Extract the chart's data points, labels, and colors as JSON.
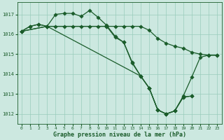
{
  "bg_color": "#cce8e0",
  "grid_color": "#99ccbb",
  "line_color": "#1a5c2a",
  "xlabel": "Graphe pression niveau de la mer (hPa)",
  "xlim": [
    -0.5,
    23.5
  ],
  "ylim": [
    1011.5,
    1017.6
  ],
  "yticks": [
    1012,
    1013,
    1014,
    1015,
    1016,
    1017
  ],
  "xticks": [
    0,
    1,
    2,
    3,
    4,
    5,
    6,
    7,
    8,
    9,
    10,
    11,
    12,
    13,
    14,
    15,
    16,
    17,
    18,
    19,
    20,
    21,
    22,
    23
  ],
  "s1_x": [
    0,
    1,
    2,
    3,
    4,
    5,
    6,
    7,
    8,
    9,
    10,
    11,
    12,
    13,
    14,
    15,
    16,
    17,
    18,
    19,
    20,
    21,
    22,
    23
  ],
  "s1_y": [
    1016.15,
    1016.4,
    1016.5,
    1016.4,
    1017.0,
    1017.05,
    1017.05,
    1016.9,
    1017.2,
    1016.85,
    1016.45,
    1015.9,
    1015.6,
    1014.6,
    1013.9,
    1013.3,
    1012.2,
    1012.0,
    1012.15,
    1012.9,
    1013.85,
    1014.85,
    1014.95,
    1014.95
  ],
  "s2_x": [
    0,
    1,
    2,
    3,
    4,
    5,
    6,
    7,
    8,
    9,
    10,
    11,
    12,
    13,
    14,
    15,
    16,
    17,
    18,
    19,
    20,
    21,
    22,
    23
  ],
  "s2_y": [
    1016.15,
    1016.4,
    1016.5,
    1016.4,
    1016.4,
    1016.4,
    1016.4,
    1016.4,
    1016.4,
    1016.4,
    1016.4,
    1016.4,
    1016.4,
    1016.4,
    1016.4,
    1016.2,
    1015.8,
    1015.55,
    1015.4,
    1015.3,
    1015.1,
    1015.0,
    1014.95,
    1014.95
  ],
  "s3_x": [
    0,
    3,
    10,
    11,
    12,
    13,
    14,
    15,
    16,
    17,
    18,
    19,
    20
  ],
  "s3_y": [
    1016.15,
    1016.4,
    1016.4,
    1015.85,
    1015.6,
    1014.55,
    1013.9,
    1013.3,
    1012.2,
    1012.0,
    1012.15,
    1012.85,
    1012.9
  ],
  "s4_x": [
    0,
    3,
    14,
    15,
    16,
    17,
    18,
    19,
    20
  ],
  "s4_y": [
    1016.15,
    1016.4,
    1013.9,
    1013.3,
    1012.2,
    1012.0,
    1012.15,
    1012.85,
    1012.9
  ]
}
